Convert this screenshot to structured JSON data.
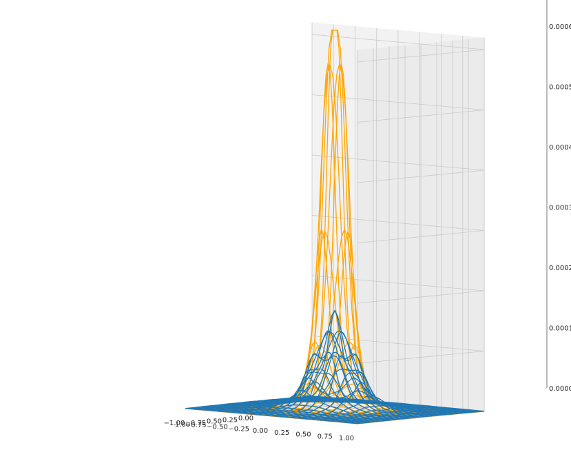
{
  "chart_data": {
    "type": "3d-wireframe",
    "title": "",
    "grid": true,
    "x_axis": {
      "label": "",
      "range": [
        -1.0,
        1.0
      ],
      "visible_ticks": [
        0.0,
        0.25,
        0.5,
        0.75,
        1.0
      ],
      "tick_labels": [
        "0.00",
        "0.25",
        "0.50",
        "0.75",
        "1.00"
      ]
    },
    "y_axis": {
      "label": "",
      "range": [
        -1.0,
        1.0
      ],
      "ticks": [
        -1.0,
        -0.75,
        -0.5,
        -0.25,
        0.0,
        0.25,
        0.5,
        0.75,
        1.0
      ],
      "tick_labels": [
        "−1.00",
        "−0.75",
        "−0.50",
        "−0.25",
        "0.00",
        "0.25",
        "0.50",
        "0.75",
        "1.00"
      ]
    },
    "z_axis": {
      "label": "",
      "range": [
        0,
        0.00062
      ],
      "ticks": [
        0.0,
        0.0001,
        0.0002,
        0.0003,
        0.0004,
        0.0005,
        0.0006
      ],
      "tick_labels": [
        "0.0000",
        "0.0001",
        "0.0002",
        "0.0003",
        "0.0004",
        "0.0005",
        "0.0006"
      ]
    },
    "series": [
      {
        "color": "#FFA500",
        "peak_z": 0.00063,
        "surface": "sharp peak near center (flat top), exponential decay"
      },
      {
        "color": "#1F77B4",
        "peak_z": 0.00017,
        "surface": "lower rippled peak near center"
      }
    ]
  }
}
